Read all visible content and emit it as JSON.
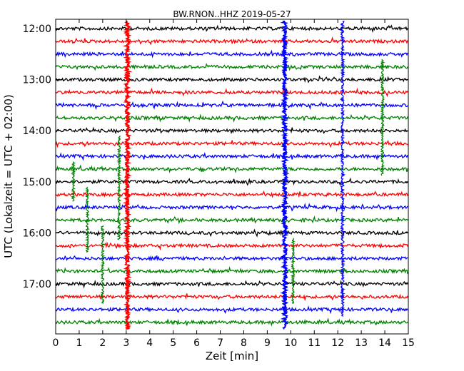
{
  "chart_data": {
    "type": "line",
    "title": "BW.RNON..HHZ 2019-05-27",
    "xlabel": "Zeit  [min]",
    "ylabel": "UTC (Lokalzeit = UTC + 02:00)",
    "xlim": [
      0,
      15
    ],
    "x_ticks": [
      "0",
      "1",
      "2",
      "3",
      "4",
      "5",
      "6",
      "7",
      "8",
      "9",
      "10",
      "11",
      "12",
      "13",
      "14",
      "15"
    ],
    "y_ticks": [
      "12:00",
      "13:00",
      "14:00",
      "15:00",
      "16:00",
      "17:00"
    ],
    "trace_interval_min": 15,
    "trace_colors": [
      "#000000",
      "#ff0000",
      "#0000ff",
      "#008000"
    ],
    "traces": [
      {
        "start": "12:00",
        "color": "#000000"
      },
      {
        "start": "12:15",
        "color": "#ff0000"
      },
      {
        "start": "12:30",
        "color": "#0000ff"
      },
      {
        "start": "12:45",
        "color": "#008000"
      },
      {
        "start": "13:00",
        "color": "#000000"
      },
      {
        "start": "13:15",
        "color": "#ff0000"
      },
      {
        "start": "13:30",
        "color": "#0000ff"
      },
      {
        "start": "13:45",
        "color": "#008000"
      },
      {
        "start": "14:00",
        "color": "#000000"
      },
      {
        "start": "14:15",
        "color": "#ff0000"
      },
      {
        "start": "14:30",
        "color": "#0000ff"
      },
      {
        "start": "14:45",
        "color": "#008000"
      },
      {
        "start": "15:00",
        "color": "#000000"
      },
      {
        "start": "15:15",
        "color": "#ff0000"
      },
      {
        "start": "15:30",
        "color": "#0000ff"
      },
      {
        "start": "15:45",
        "color": "#008000"
      },
      {
        "start": "16:00",
        "color": "#000000"
      },
      {
        "start": "16:15",
        "color": "#ff0000"
      },
      {
        "start": "16:30",
        "color": "#0000ff"
      },
      {
        "start": "16:45",
        "color": "#008000"
      },
      {
        "start": "17:00",
        "color": "#000000"
      },
      {
        "start": "17:15",
        "color": "#ff0000"
      },
      {
        "start": "17:30",
        "color": "#0000ff"
      },
      {
        "start": "17:45",
        "color": "#008000"
      }
    ],
    "events": [
      {
        "time_min": 3.05,
        "color": "#ff0000",
        "trace_from": 0,
        "trace_to": 23,
        "amplitude": 1.0
      },
      {
        "time_min": 9.75,
        "color": "#0000ff",
        "trace_from": 0,
        "trace_to": 23,
        "amplitude": 1.0
      },
      {
        "time_min": 12.2,
        "color": "#0000ff",
        "trace_from": 0,
        "trace_to": 22,
        "amplitude": 0.7
      },
      {
        "time_min": 0.75,
        "color": "#008000",
        "trace_from": 11,
        "trace_to": 13,
        "amplitude": 0.6
      },
      {
        "time_min": 2.7,
        "color": "#008000",
        "trace_from": 9,
        "trace_to": 16,
        "amplitude": 0.6
      },
      {
        "time_min": 1.35,
        "color": "#008000",
        "trace_from": 13,
        "trace_to": 17,
        "amplitude": 0.6
      },
      {
        "time_min": 2.0,
        "color": "#008000",
        "trace_from": 16,
        "trace_to": 21,
        "amplitude": 0.6
      },
      {
        "time_min": 10.1,
        "color": "#008000",
        "trace_from": 17,
        "trace_to": 21,
        "amplitude": 0.6
      },
      {
        "time_min": 13.9,
        "color": "#008000",
        "trace_from": 3,
        "trace_to": 11,
        "amplitude": 0.6
      }
    ]
  }
}
